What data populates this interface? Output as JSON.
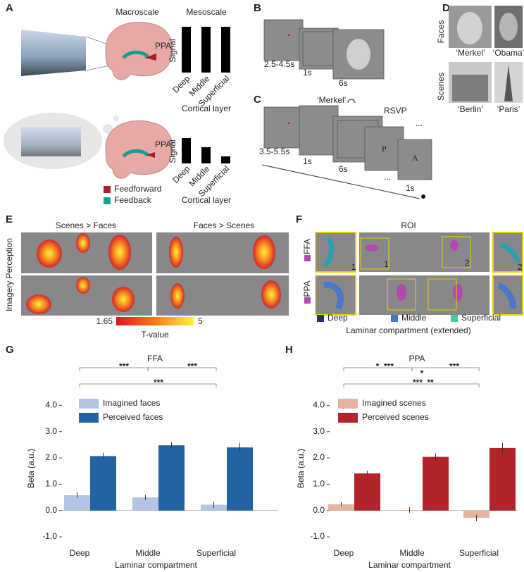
{
  "panels": {
    "A": {
      "label": "A",
      "macroscale": "Macroscale",
      "mesoscale": "Mesoscale",
      "ppa_top": "PPA",
      "ppa_bottom": "PPA",
      "signal_top": "Signal",
      "signal_bottom": "Signal",
      "layers_top": [
        "Deep",
        "Middle",
        "Superficial"
      ],
      "layers_bottom": [
        "Deep",
        "Middle",
        "Superficial"
      ],
      "xlabel_top": "Cortical layer",
      "xlabel_bottom": "Cortical layer",
      "legend": [
        "Feedforward",
        "Feedback"
      ]
    },
    "B": {
      "label": "B",
      "durations": [
        "2.5-4.5s",
        "1s",
        "6s"
      ]
    },
    "C": {
      "label": "C",
      "cue": "‘Merkel’",
      "rsvp": "RSVP",
      "durations": [
        "3.5-5.5s",
        "1s",
        "6s",
        "1s"
      ],
      "letters": [
        "P",
        "A"
      ],
      "ellipses": [
        "...",
        "..."
      ]
    },
    "D": {
      "label": "D",
      "rows": [
        "Faces",
        "Scenes"
      ],
      "captions": [
        "‘Merkel’",
        "‘Obama’",
        "‘Berlin’",
        "‘Paris’"
      ]
    },
    "E": {
      "label": "E",
      "columns": [
        "Scenes > Faces",
        "Faces > Scenes"
      ],
      "rows_label": "Imagery Perception",
      "colorbar": {
        "min": 1.65,
        "max": 5,
        "label": "T-value"
      }
    },
    "F": {
      "label": "F",
      "title": "ROI",
      "rows": [
        "FFA",
        "PPA"
      ],
      "inset_numbers": [
        "1",
        "2",
        "1",
        "2"
      ],
      "legend": [
        "Deep",
        "Middle",
        "Superficial"
      ],
      "caption": "Laminar compartment (extended)"
    }
  },
  "chart_data": [
    {
      "type": "bar",
      "panel_label": "G",
      "title": "FFA",
      "ylabel": "Beta (a.u.)",
      "xlabel": "Laminar compartment",
      "categories": [
        "Deep",
        "Middle",
        "Superficial"
      ],
      "series": [
        {
          "name": "Imagined faces",
          "color": "#b3c3e2",
          "values": [
            0.58,
            0.5,
            0.22
          ],
          "errors": [
            0.1,
            0.1,
            0.12
          ]
        },
        {
          "name": "Perceived faces",
          "color": "#2264a3",
          "values": [
            2.07,
            2.48,
            2.4
          ],
          "errors": [
            0.13,
            0.12,
            0.17
          ]
        }
      ],
      "ylim": [
        -1.4,
        4.6
      ],
      "yticks": [
        {
          "value": -1,
          "label": "-1.0"
        },
        {
          "value": 0,
          "label": "0.0"
        },
        {
          "value": 1,
          "label": "1.0"
        },
        {
          "value": 2,
          "label": "2.0"
        },
        {
          "value": 3,
          "label": "3.0"
        },
        {
          "value": 4,
          "label": "4.0"
        }
      ],
      "annotations": [
        {
          "text": "***",
          "color": "#2264a3"
        },
        {
          "text": "***",
          "color": "#b3c3e2"
        },
        {
          "text": "***",
          "color": "#b3c3e2"
        }
      ]
    },
    {
      "type": "bar",
      "panel_label": "H",
      "title": "PPA",
      "ylabel": "Beta (a.u.)",
      "xlabel": "Laminar compartment",
      "categories": [
        "Deep",
        "Middle",
        "Superficial"
      ],
      "series": [
        {
          "name": "Imagined scenes",
          "color": "#e8b39e",
          "values": [
            0.24,
            0.02,
            -0.28
          ],
          "errors": [
            0.08,
            0.1,
            0.12
          ]
        },
        {
          "name": "Perceived scenes",
          "color": "#b2242a",
          "values": [
            1.41,
            2.04,
            2.38
          ],
          "errors": [
            0.1,
            0.13,
            0.2
          ]
        }
      ],
      "ylim": [
        -1.4,
        4.6
      ],
      "yticks": [
        {
          "value": -1,
          "label": "-1.0"
        },
        {
          "value": 0,
          "label": "0.0"
        },
        {
          "value": 1,
          "label": "1.0"
        },
        {
          "value": 2,
          "label": "2.0"
        },
        {
          "value": 3,
          "label": "3.0"
        },
        {
          "value": 4,
          "label": "4.0"
        }
      ],
      "annotations": [
        {
          "text": "*",
          "color": "#e8b39e"
        },
        {
          "text": "***",
          "color": "#b2242a"
        },
        {
          "text": "*",
          "color": "#e8b39e"
        },
        {
          "text": "***",
          "color": "#e8b39e"
        },
        {
          "text": "***",
          "color": "#e8b39e"
        },
        {
          "text": "**",
          "color": "#b2242a"
        }
      ]
    }
  ]
}
